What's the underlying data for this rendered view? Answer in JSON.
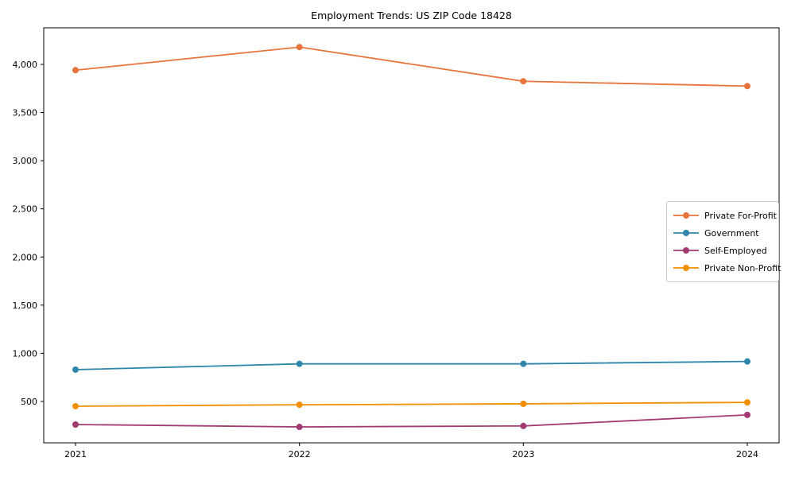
{
  "chart_data": {
    "type": "line",
    "title": "Employment Trends: US ZIP Code 18428",
    "xlabel": "",
    "ylabel": "",
    "x": [
      2021,
      2022,
      2023,
      2024
    ],
    "x_tick_labels": [
      "2021",
      "2022",
      "2023",
      "2024"
    ],
    "series": [
      {
        "name": "Private For-Profit",
        "color": "#E8743B",
        "values": [
          3940,
          4180,
          3825,
          3775
        ]
      },
      {
        "name": "Government",
        "color": "#2E86AB",
        "values": [
          830,
          890,
          890,
          915
        ]
      },
      {
        "name": "Self-Employed",
        "color": "#A23B72",
        "values": [
          260,
          235,
          245,
          360
        ]
      },
      {
        "name": "Private Non-Profit",
        "color": "#F18F01",
        "values": [
          450,
          465,
          475,
          490
        ]
      }
    ],
    "yticks": [
      500,
      1000,
      1500,
      2000,
      2500,
      3000,
      3500,
      4000
    ],
    "ytick_labels": [
      "500",
      "1,000",
      "1,500",
      "2,000",
      "2,500",
      "3,000",
      "3,500",
      "4,000"
    ],
    "ylim": [
      70,
      4380
    ],
    "grid": false,
    "legend_position": "center right",
    "marker": "o",
    "line_width": 1.8,
    "marker_radius": 4,
    "axis_color": "#000000",
    "background_color": "#ffffff"
  }
}
